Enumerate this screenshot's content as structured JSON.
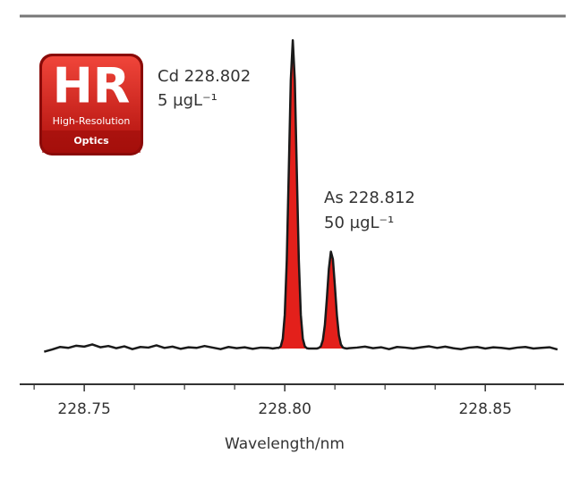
{
  "chart_data": {
    "type": "line",
    "xlabel": "Wavelength/nm",
    "annotations": [
      "Cd 228.802",
      "5 µgL⁻¹",
      "As 228.812",
      "50 µgL⁻¹"
    ],
    "badge": {
      "title": "HR",
      "subtitle": "High-Resolution",
      "label": "Optics"
    },
    "color": "#1a1a1a",
    "fill_color": "#e3201b",
    "fill_range": [
      228.7965,
      228.8155
    ],
    "xlim": [
      228.7339,
      228.8696
    ],
    "ylim": [
      -5,
      100
    ],
    "xticks": [
      {
        "value": 228.75,
        "label": "228.75"
      },
      {
        "value": 228.8,
        "label": "228.80"
      },
      {
        "value": 228.85,
        "label": "228.85"
      }
    ],
    "minor_xticks": [
      228.7375,
      228.7625,
      228.775,
      228.7875,
      228.8125,
      228.825,
      228.8375,
      228.8625
    ],
    "x": [
      228.74,
      228.742,
      228.744,
      228.746,
      228.748,
      228.75,
      228.752,
      228.754,
      228.756,
      228.758,
      228.76,
      228.762,
      228.764,
      228.766,
      228.768,
      228.77,
      228.772,
      228.774,
      228.776,
      228.778,
      228.78,
      228.782,
      228.784,
      228.786,
      228.788,
      228.79,
      228.792,
      228.794,
      228.796,
      228.7965,
      228.797,
      228.7975,
      228.798,
      228.7985,
      228.799,
      228.7995,
      228.8,
      228.8005,
      228.801,
      228.8015,
      228.802,
      228.8025,
      228.803,
      228.8035,
      228.804,
      228.8045,
      228.805,
      228.8055,
      228.806,
      228.8065,
      228.807,
      228.8075,
      228.808,
      228.8085,
      228.809,
      228.8095,
      228.81,
      228.8105,
      228.811,
      228.8115,
      228.812,
      228.8125,
      228.813,
      228.8135,
      228.814,
      228.8145,
      228.815,
      228.8155,
      228.816,
      228.818,
      228.82,
      228.822,
      228.824,
      228.826,
      228.828,
      228.83,
      228.832,
      228.834,
      228.836,
      228.838,
      228.84,
      228.842,
      228.844,
      228.846,
      228.848,
      228.85,
      228.852,
      228.854,
      228.856,
      228.858,
      228.86,
      228.862,
      228.864,
      228.866,
      228.868
    ],
    "values": [
      -1.0,
      -0.3,
      0.5,
      0.2,
      0.9,
      0.6,
      1.3,
      0.4,
      0.8,
      0.1,
      0.7,
      -0.2,
      0.5,
      0.3,
      1.0,
      0.2,
      0.6,
      -0.1,
      0.4,
      0.2,
      0.8,
      0.3,
      -0.2,
      0.5,
      0.1,
      0.4,
      -0.1,
      0.3,
      0.2,
      0.1,
      0.0,
      0.1,
      0.2,
      0.2,
      0.7,
      3.1,
      10.7,
      28.1,
      56.3,
      85.3,
      98,
      85.3,
      56.3,
      28.1,
      10.7,
      3.1,
      0.7,
      0.1,
      0.0,
      0.0,
      0.0,
      0.0,
      0.0,
      0.2,
      0.7,
      2.7,
      7.5,
      15.9,
      25.4,
      30.8,
      28.4,
      19.8,
      10.5,
      4.2,
      1.3,
      0.3,
      0.1,
      0.0,
      0.1,
      0.3,
      0.6,
      0.1,
      0.4,
      -0.2,
      0.5,
      0.3,
      0.0,
      0.4,
      0.7,
      0.2,
      0.6,
      0.1,
      -0.2,
      0.3,
      0.5,
      0.0,
      0.4,
      0.2,
      -0.1,
      0.3,
      0.5,
      0.0,
      0.2,
      0.4,
      -0.3
    ]
  }
}
